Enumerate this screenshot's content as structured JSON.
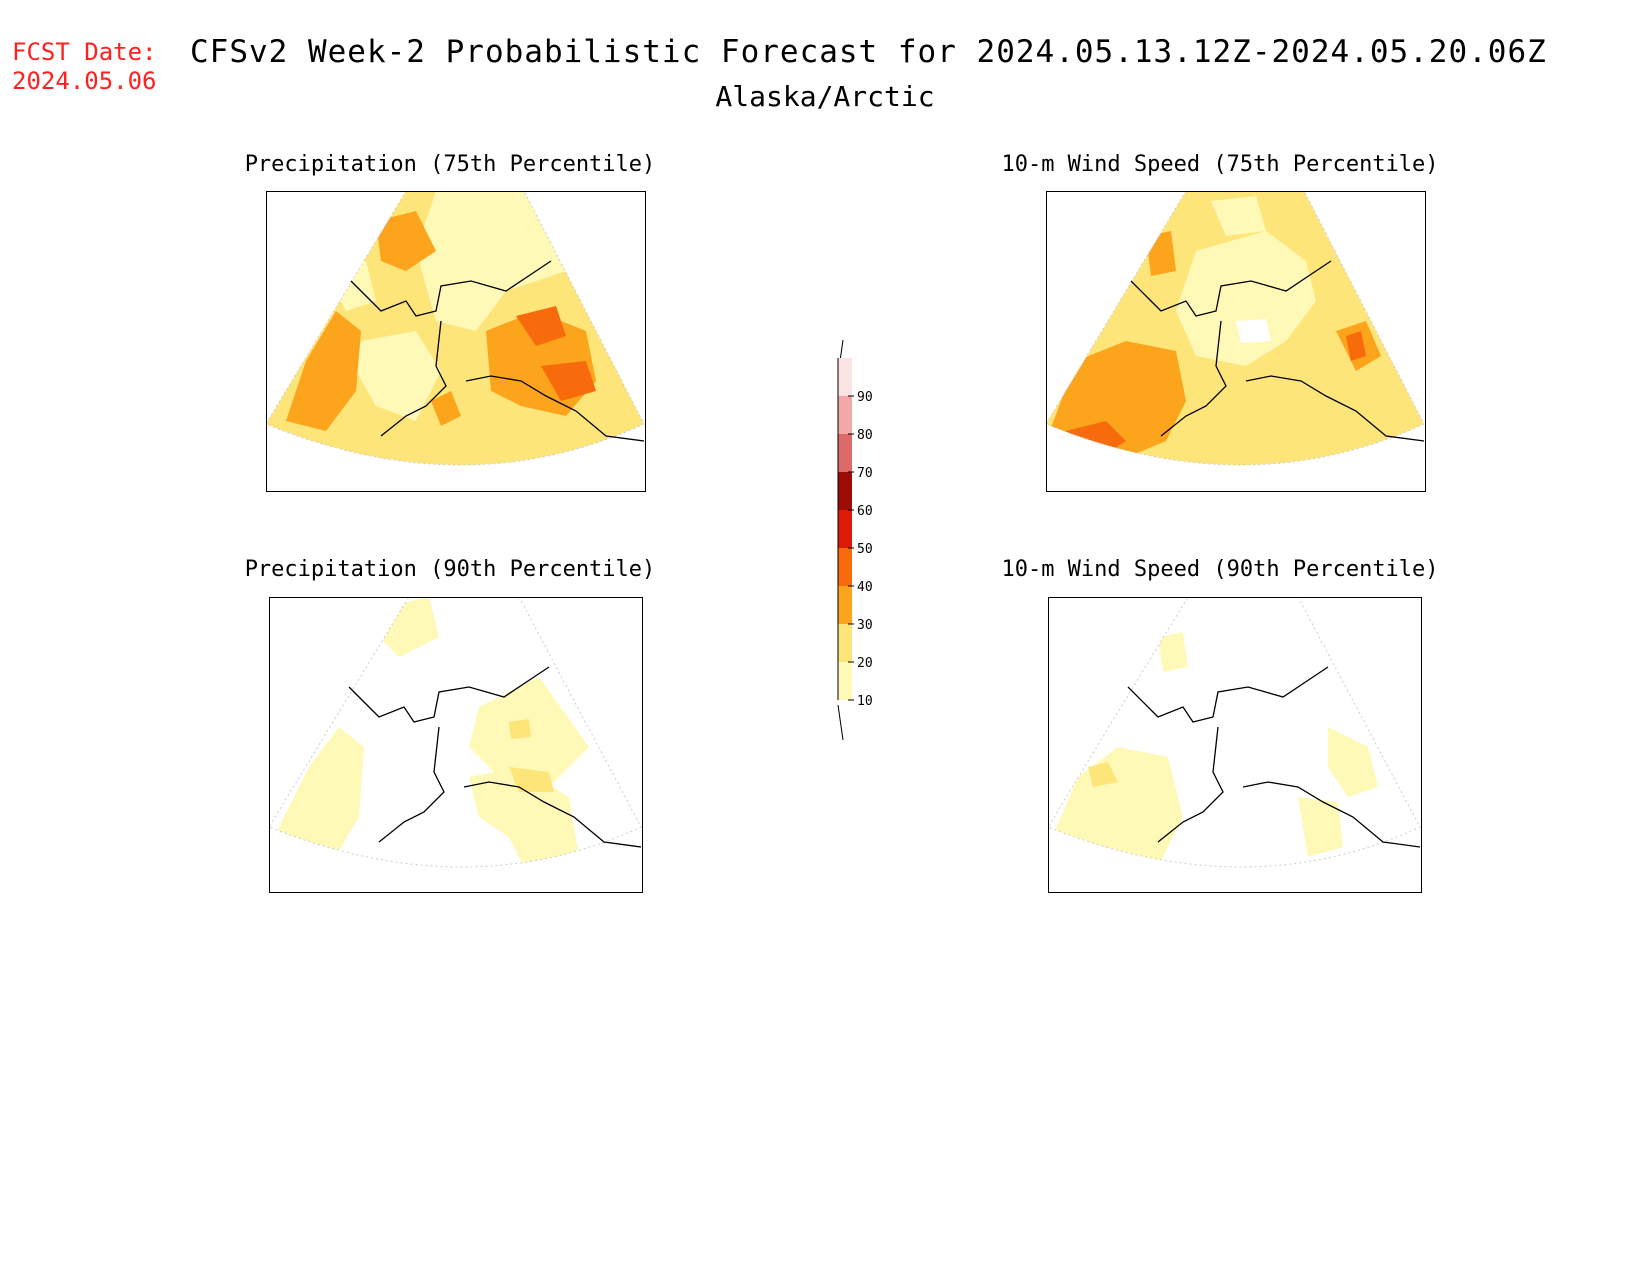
{
  "header": {
    "fcst_label": "FCST Date:",
    "fcst_date": "2024.05.06",
    "title": "CFSv2 Week-2 Probabilistic Forecast for 2024.05.13.12Z-2024.05.20.06Z",
    "region": "Alaska/Arctic"
  },
  "panels": [
    {
      "id": "precip75",
      "title": "Precipitation (75th Percentile)"
    },
    {
      "id": "wind75",
      "title": "10-m Wind Speed (75th Percentile)"
    },
    {
      "id": "precip90",
      "title": "Precipitation (90th Percentile)"
    },
    {
      "id": "wind90",
      "title": "10-m Wind Speed (90th Percentile)"
    }
  ],
  "colorbar": {
    "levels": [
      "10",
      "20",
      "30",
      "40",
      "50",
      "60",
      "70",
      "80",
      "90"
    ],
    "colors": {
      "c10": "#fff9b8",
      "c20": "#fde57a",
      "c30": "#fca41c",
      "c40": "#f76b0c",
      "c50": "#dc1a06",
      "c60": "#9e0c06",
      "c70": "#dd6a6a",
      "c80": "#f3a8a8",
      "c90": "#fde4e4"
    }
  }
}
